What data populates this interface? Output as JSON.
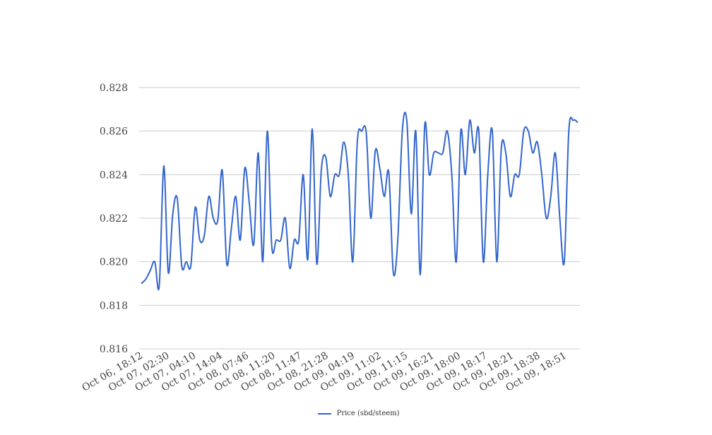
{
  "chart_data": {
    "type": "line",
    "title": "",
    "xlabel": "",
    "ylabel": "",
    "ylim": [
      0.816,
      0.828
    ],
    "yticks": [
      "0.816",
      "0.818",
      "0.820",
      "0.822",
      "0.824",
      "0.826",
      "0.828"
    ],
    "x_tick_labels": [
      "Oct 06, 18:12",
      "Oct 07, 02:30",
      "Oct 07, 04:10",
      "Oct 07, 14:04",
      "Oct 08, 07:46",
      "Oct 08, 11:20",
      "Oct 08, 11:47",
      "Oct 08, 21:28",
      "Oct 09, 04:19",
      "Oct 09, 11:02",
      "Oct 09, 11:15",
      "Oct 09, 16:21",
      "Oct 09, 18:00",
      "Oct 09, 18:17",
      "Oct 09, 18:21",
      "Oct 09, 18:38",
      "Oct 09, 18:51"
    ],
    "grid": true,
    "legend_position": "bottom",
    "color": "#3366cc",
    "series": [
      {
        "name": "Price (sbd/steem)",
        "values": [
          0.819,
          0.8192,
          0.8196,
          0.82,
          0.8189,
          0.8244,
          0.8195,
          0.8222,
          0.8229,
          0.8198,
          0.82,
          0.8198,
          0.8225,
          0.821,
          0.8212,
          0.823,
          0.822,
          0.8219,
          0.8242,
          0.8199,
          0.8215,
          0.823,
          0.821,
          0.8243,
          0.8227,
          0.8208,
          0.825,
          0.82,
          0.826,
          0.8207,
          0.821,
          0.821,
          0.822,
          0.8197,
          0.821,
          0.821,
          0.824,
          0.8201,
          0.8261,
          0.8199,
          0.8242,
          0.8248,
          0.823,
          0.824,
          0.824,
          0.8255,
          0.824,
          0.82,
          0.8255,
          0.826,
          0.8259,
          0.822,
          0.8251,
          0.8243,
          0.823,
          0.8241,
          0.8195,
          0.821,
          0.826,
          0.8265,
          0.8222,
          0.826,
          0.8194,
          0.8263,
          0.824,
          0.825,
          0.825,
          0.825,
          0.826,
          0.824,
          0.82,
          0.826,
          0.824,
          0.8265,
          0.825,
          0.826,
          0.82,
          0.824,
          0.826,
          0.82,
          0.8252,
          0.825,
          0.823,
          0.824,
          0.824,
          0.826,
          0.826,
          0.825,
          0.8255,
          0.824,
          0.822,
          0.823,
          0.825,
          0.822,
          0.82,
          0.826,
          0.8265,
          0.8264
        ]
      }
    ]
  }
}
